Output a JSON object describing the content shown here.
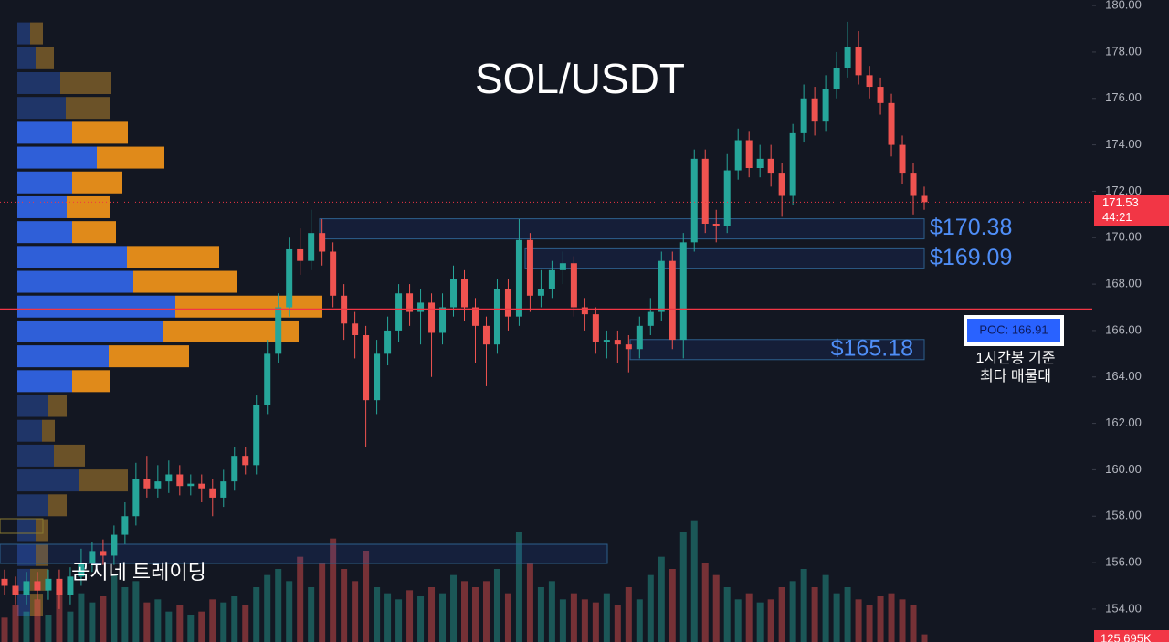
{
  "chart_data": {
    "type": "candlestick",
    "title": "SOL/USDT",
    "watermark": "곰지네 트레이딩",
    "up_color": "#26a69a",
    "down_color": "#ef5350",
    "ylim": [
      152.58,
      180.24
    ],
    "yticks": [
      {
        "value": 154,
        "label": "154.00"
      },
      {
        "value": 156,
        "label": "156.00"
      },
      {
        "value": 158,
        "label": "158.00"
      },
      {
        "value": 160,
        "label": "160.00"
      },
      {
        "value": 162,
        "label": "162.00"
      },
      {
        "value": 164,
        "label": "164.00"
      },
      {
        "value": 166,
        "label": "166.00"
      },
      {
        "value": 168,
        "label": "168.00"
      },
      {
        "value": 170,
        "label": "170.00"
      },
      {
        "value": 172,
        "label": "172.00"
      },
      {
        "value": 174,
        "label": "174.00"
      },
      {
        "value": 176,
        "label": "176.00"
      },
      {
        "value": 178,
        "label": "178.00"
      },
      {
        "value": 180,
        "label": "180.00"
      }
    ],
    "open": [
      155.3,
      155.0,
      154.6,
      155.2,
      154.8,
      155.3,
      154.6,
      155.4,
      156.0,
      156.5,
      156.3,
      157.2,
      158.0,
      159.6,
      159.2,
      159.5,
      159.8,
      159.3,
      159.4,
      159.2,
      158.8,
      159.5,
      160.6,
      160.2,
      162.8,
      165.0,
      167.0,
      169.5,
      169.0,
      170.2,
      169.4,
      167.5,
      166.3,
      165.8,
      163.0,
      165.0,
      166.0,
      167.6,
      166.8,
      167.2,
      165.9,
      167.0,
      168.2,
      167.0,
      166.2,
      165.4,
      167.8,
      166.6,
      169.9,
      167.5,
      167.8,
      168.6,
      168.9,
      167.0,
      166.7,
      165.5,
      165.6,
      165.4,
      165.2,
      166.2,
      166.8,
      169.0,
      165.6,
      169.8,
      173.4,
      170.6,
      170.5,
      172.9,
      174.2,
      173.0,
      173.4,
      172.8,
      171.8,
      174.5,
      176.0,
      175.0,
      176.4,
      177.3,
      178.2,
      177.0,
      176.5,
      175.8,
      174.0,
      172.8,
      171.8
    ],
    "high": [
      155.7,
      155.4,
      155.6,
      155.6,
      155.7,
      155.7,
      155.8,
      156.6,
      156.9,
      157.0,
      157.6,
      158.6,
      160.3,
      160.6,
      160.2,
      160.4,
      160.2,
      159.8,
      159.8,
      159.6,
      160.0,
      161.0,
      161.0,
      163.2,
      165.6,
      167.6,
      170.0,
      170.4,
      171.2,
      170.8,
      169.8,
      168.0,
      166.8,
      166.2,
      165.6,
      166.6,
      168.0,
      168.0,
      167.8,
      167.6,
      167.6,
      168.8,
      168.6,
      167.4,
      166.6,
      168.2,
      168.2,
      170.8,
      170.2,
      168.6,
      169.0,
      169.4,
      169.2,
      167.4,
      167.0,
      166.0,
      166.0,
      165.8,
      166.6,
      167.4,
      169.4,
      169.4,
      170.2,
      173.8,
      173.8,
      171.2,
      173.6,
      174.7,
      174.6,
      174.0,
      174.0,
      173.2,
      174.9,
      176.6,
      176.5,
      177.0,
      178.0,
      179.3,
      178.9,
      177.4,
      176.9,
      176.2,
      174.4,
      173.2,
      172.2
    ],
    "low": [
      154.6,
      154.2,
      154.2,
      154.4,
      154.4,
      154.0,
      154.2,
      155.0,
      155.6,
      155.9,
      155.9,
      156.8,
      157.6,
      158.8,
      158.8,
      159.0,
      158.9,
      158.9,
      158.6,
      158.0,
      158.4,
      159.1,
      159.8,
      159.8,
      162.4,
      164.6,
      166.6,
      168.4,
      168.6,
      168.8,
      167.0,
      165.6,
      164.8,
      161.0,
      162.4,
      164.5,
      165.5,
      166.2,
      165.4,
      164.0,
      165.4,
      166.6,
      166.4,
      164.6,
      163.6,
      165.0,
      166.0,
      166.2,
      166.8,
      167.0,
      167.4,
      168.0,
      166.6,
      166.0,
      165.0,
      164.8,
      164.6,
      164.2,
      164.8,
      165.8,
      166.4,
      165.2,
      164.8,
      169.4,
      170.2,
      169.8,
      170.2,
      172.5,
      172.6,
      172.6,
      172.2,
      170.9,
      171.4,
      174.1,
      174.4,
      174.6,
      176.0,
      176.9,
      176.6,
      176.0,
      175.3,
      173.5,
      172.3,
      171.0,
      171.2
    ],
    "close": [
      155.0,
      154.6,
      155.2,
      154.8,
      155.3,
      154.6,
      155.4,
      156.0,
      156.5,
      156.3,
      157.2,
      158.0,
      159.6,
      159.2,
      159.5,
      159.8,
      159.3,
      159.4,
      159.2,
      158.8,
      159.5,
      160.6,
      160.2,
      162.8,
      165.0,
      167.0,
      169.5,
      169.0,
      170.2,
      169.4,
      167.5,
      166.3,
      165.8,
      163.0,
      165.0,
      166.0,
      167.6,
      166.8,
      167.2,
      165.9,
      167.0,
      168.2,
      167.0,
      166.2,
      165.4,
      167.8,
      166.6,
      169.9,
      167.5,
      167.8,
      168.6,
      168.9,
      167.0,
      166.7,
      165.5,
      165.6,
      165.4,
      165.2,
      166.2,
      166.8,
      169.0,
      165.6,
      169.8,
      173.4,
      170.6,
      170.5,
      172.9,
      174.2,
      173.0,
      173.4,
      172.8,
      171.8,
      174.5,
      176.0,
      175.0,
      176.4,
      177.3,
      178.2,
      177.0,
      176.5,
      175.8,
      174.0,
      172.8,
      171.8,
      171.53
    ],
    "volume": [
      400,
      600,
      500,
      700,
      450,
      900,
      500,
      800,
      650,
      750,
      1100,
      900,
      1000,
      650,
      700,
      500,
      600,
      450,
      500,
      700,
      650,
      750,
      600,
      900,
      1100,
      1200,
      1000,
      1400,
      900,
      1300,
      1700,
      1200,
      1000,
      1500,
      900,
      800,
      700,
      850,
      750,
      900,
      800,
      1100,
      1000,
      900,
      1000,
      1200,
      800,
      1800,
      1300,
      900,
      1000,
      700,
      800,
      700,
      650,
      800,
      600,
      900,
      700,
      1100,
      1400,
      1200,
      1800,
      2000,
      1300,
      1100,
      900,
      700,
      800,
      650,
      700,
      900,
      1000,
      1200,
      900,
      1100,
      800,
      900,
      700,
      600,
      750,
      800,
      700,
      600,
      125.695
    ],
    "volume_lim": [
      0,
      3000
    ],
    "last_volume_label": "125.695K",
    "last_price": 171.53,
    "countdown": "44:21",
    "poc": {
      "value": 166.91,
      "label": "POC: 166.91",
      "note": [
        "1시간봉 기준",
        "최다 매물대"
      ]
    },
    "zones": [
      {
        "value": 170.38,
        "label": "$170.38"
      },
      {
        "value": 169.09,
        "label": "$169.09"
      },
      {
        "value": 165.18,
        "label": "$165.18"
      }
    ],
    "volume_profile": {
      "prices": [
        178.8,
        177.73,
        176.66,
        175.59,
        174.52,
        173.45,
        172.38,
        171.31,
        170.24,
        169.17,
        168.1,
        167.03,
        165.96,
        164.89,
        163.82,
        162.75,
        161.68,
        160.61,
        159.54,
        158.47,
        157.4,
        156.33,
        155.26,
        154.19
      ],
      "buy": [
        14,
        20,
        47,
        53,
        60,
        87,
        60,
        54,
        60,
        120,
        127,
        173,
        160,
        100,
        60,
        34,
        27,
        40,
        67,
        34,
        20,
        20,
        14,
        14
      ],
      "sell": [
        14,
        20,
        55,
        48,
        61,
        74,
        55,
        47,
        48,
        101,
        114,
        161,
        148,
        88,
        41,
        20,
        14,
        34,
        54,
        20,
        14,
        14,
        20,
        14
      ],
      "value_area": [
        4,
        14
      ]
    }
  }
}
